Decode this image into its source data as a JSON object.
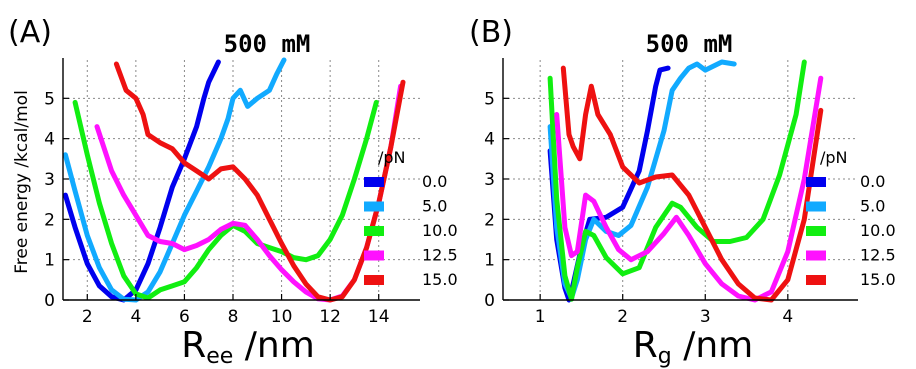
{
  "chart_data": [
    {
      "type": "line",
      "panel_label": "(A)",
      "title": "500 mM",
      "xlabel_main": "R",
      "xlabel_sub": "ee",
      "xlabel_unit": " /nm",
      "ylabel": "Free energy /kcal/mol",
      "xlim": [
        1,
        15.7
      ],
      "ylim": [
        0,
        5.95
      ],
      "xticks": [
        2,
        4,
        6,
        8,
        10,
        12,
        14
      ],
      "yticks": [
        0,
        1,
        2,
        3,
        4,
        5
      ],
      "grid": true,
      "series": [
        {
          "name": "0.0",
          "color": "#0000ee",
          "x": [
            1.1,
            1.5,
            2.0,
            2.5,
            3.0,
            3.5,
            4.0,
            4.5,
            5.0,
            5.5,
            6.0,
            6.5,
            6.8,
            7.0,
            7.4
          ],
          "y": [
            2.6,
            1.8,
            0.9,
            0.35,
            0.08,
            0.0,
            0.25,
            0.9,
            1.8,
            2.8,
            3.5,
            4.3,
            5.0,
            5.4,
            5.9
          ]
        },
        {
          "name": "5.0",
          "color": "#11aaff",
          "x": [
            1.1,
            1.5,
            2.0,
            2.5,
            3.0,
            3.5,
            4.0,
            4.5,
            5.0,
            5.5,
            6.0,
            6.5,
            7.0,
            7.5,
            7.8,
            8.0,
            8.3,
            8.6,
            9.0,
            9.5,
            9.8,
            10.1
          ],
          "y": [
            3.6,
            2.7,
            1.6,
            0.8,
            0.25,
            0.02,
            0.0,
            0.2,
            0.7,
            1.4,
            2.1,
            2.7,
            3.3,
            4.0,
            4.5,
            5.0,
            5.2,
            4.8,
            5.0,
            5.2,
            5.6,
            5.95
          ]
        },
        {
          "name": "10.0",
          "color": "#11ee11",
          "x": [
            1.5,
            2.0,
            2.5,
            3.0,
            3.5,
            4.0,
            4.5,
            5.0,
            5.5,
            6.0,
            6.5,
            7.0,
            7.5,
            8.0,
            8.5,
            9.0,
            9.5,
            10.0,
            10.5,
            11.0,
            11.5,
            12.0,
            12.5,
            13.0,
            13.5,
            13.9
          ],
          "y": [
            4.9,
            3.6,
            2.4,
            1.4,
            0.6,
            0.15,
            0.05,
            0.25,
            0.35,
            0.45,
            0.8,
            1.25,
            1.6,
            1.85,
            1.7,
            1.4,
            1.3,
            1.2,
            1.05,
            1.0,
            1.1,
            1.5,
            2.1,
            3.0,
            4.0,
            4.9
          ]
        },
        {
          "name": "12.5",
          "color": "#ff11ff",
          "x": [
            2.4,
            3.0,
            3.5,
            4.0,
            4.5,
            5.0,
            5.5,
            6.0,
            6.5,
            7.0,
            7.5,
            8.0,
            8.5,
            9.0,
            9.5,
            10.0,
            10.5,
            11.0,
            11.5,
            12.0,
            12.5,
            13.0,
            13.5,
            14.0,
            14.5,
            14.9
          ],
          "y": [
            4.3,
            3.2,
            2.6,
            2.1,
            1.6,
            1.45,
            1.4,
            1.25,
            1.35,
            1.5,
            1.75,
            1.9,
            1.85,
            1.5,
            1.1,
            0.75,
            0.45,
            0.2,
            0.03,
            0.0,
            0.1,
            0.5,
            1.3,
            2.4,
            3.8,
            5.3
          ]
        },
        {
          "name": "15.0",
          "color": "#ee1111",
          "x": [
            3.2,
            3.6,
            4.0,
            4.3,
            4.5,
            5.0,
            5.5,
            6.0,
            6.5,
            7.0,
            7.5,
            8.0,
            8.5,
            9.0,
            9.5,
            10.0,
            10.5,
            11.0,
            11.5,
            12.0,
            12.5,
            13.0,
            13.5,
            14.0,
            14.5,
            15.0
          ],
          "y": [
            5.85,
            5.2,
            5.0,
            4.6,
            4.1,
            3.9,
            3.75,
            3.4,
            3.2,
            3.0,
            3.25,
            3.3,
            3.0,
            2.6,
            2.0,
            1.4,
            0.85,
            0.4,
            0.08,
            0.0,
            0.08,
            0.5,
            1.3,
            2.4,
            3.8,
            5.4
          ]
        }
      ]
    },
    {
      "type": "line",
      "panel_label": "(B)",
      "title": "500 mM",
      "xlabel_main": "R",
      "xlabel_sub": "g",
      "xlabel_unit": " /nm",
      "ylabel": "",
      "xlim": [
        0.55,
        4.85
      ],
      "ylim": [
        0,
        5.95
      ],
      "xticks": [
        1,
        2,
        3,
        4
      ],
      "yticks": [
        0,
        1,
        2,
        3,
        4,
        5
      ],
      "grid": true,
      "series": [
        {
          "name": "0.0",
          "color": "#0000ee",
          "x": [
            1.12,
            1.2,
            1.3,
            1.35,
            1.4,
            1.5,
            1.6,
            1.8,
            2.0,
            2.2,
            2.3,
            2.4,
            2.45,
            2.55
          ],
          "y": [
            3.7,
            1.5,
            0.3,
            0.0,
            0.4,
            1.3,
            2.0,
            2.05,
            2.3,
            3.2,
            4.2,
            5.3,
            5.7,
            5.75
          ]
        },
        {
          "name": "5.0",
          "color": "#11aaff",
          "x": [
            1.12,
            1.2,
            1.3,
            1.38,
            1.45,
            1.55,
            1.65,
            1.8,
            1.95,
            2.1,
            2.3,
            2.5,
            2.6,
            2.7,
            2.8,
            2.9,
            3.0,
            3.2,
            3.35
          ],
          "y": [
            4.3,
            1.8,
            0.4,
            0.05,
            0.5,
            1.5,
            2.0,
            1.7,
            1.6,
            1.85,
            2.8,
            4.2,
            5.2,
            5.5,
            5.75,
            5.85,
            5.7,
            5.9,
            5.85
          ]
        },
        {
          "name": "10.0",
          "color": "#11ee11",
          "x": [
            1.12,
            1.2,
            1.3,
            1.38,
            1.45,
            1.55,
            1.65,
            1.8,
            2.0,
            2.2,
            2.4,
            2.6,
            2.7,
            2.9,
            3.1,
            3.3,
            3.5,
            3.7,
            3.9,
            4.1,
            4.2
          ],
          "y": [
            5.5,
            2.5,
            0.6,
            0.02,
            0.8,
            1.7,
            1.6,
            1.05,
            0.65,
            0.8,
            1.8,
            2.4,
            2.3,
            1.8,
            1.45,
            1.45,
            1.55,
            2.0,
            3.1,
            4.6,
            5.9
          ]
        },
        {
          "name": "12.5",
          "color": "#ff11ff",
          "x": [
            1.2,
            1.3,
            1.38,
            1.45,
            1.55,
            1.65,
            1.8,
            1.95,
            2.1,
            2.3,
            2.5,
            2.65,
            2.8,
            3.0,
            3.2,
            3.4,
            3.6,
            3.8,
            4.0,
            4.2,
            4.4
          ],
          "y": [
            4.6,
            1.8,
            1.1,
            1.2,
            2.6,
            2.45,
            1.8,
            1.25,
            1.0,
            1.2,
            1.65,
            2.05,
            1.6,
            0.9,
            0.4,
            0.1,
            0.0,
            0.2,
            1.2,
            3.0,
            5.5
          ]
        },
        {
          "name": "15.0",
          "color": "#ee1111",
          "x": [
            1.28,
            1.35,
            1.4,
            1.48,
            1.55,
            1.62,
            1.7,
            1.85,
            2.0,
            2.2,
            2.4,
            2.6,
            2.8,
            3.0,
            3.2,
            3.4,
            3.6,
            3.8,
            4.0,
            4.2,
            4.4
          ],
          "y": [
            5.75,
            4.1,
            3.8,
            3.5,
            4.6,
            5.3,
            4.6,
            4.1,
            3.3,
            2.9,
            3.05,
            3.1,
            2.6,
            1.8,
            1.0,
            0.4,
            0.05,
            0.0,
            0.5,
            2.0,
            4.7
          ]
        }
      ]
    }
  ],
  "legend_title": "/pN"
}
